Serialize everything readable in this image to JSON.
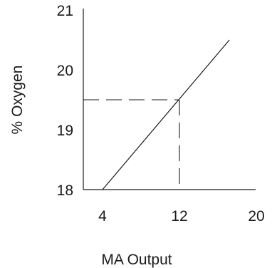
{
  "chart_data": {
    "type": "line",
    "xlabel": "MA Output",
    "ylabel": "% Oxygen",
    "x_ticks": [
      "4",
      "12",
      "20"
    ],
    "y_ticks": [
      "18",
      "19",
      "20",
      "21"
    ],
    "xlim": [
      4,
      20
    ],
    "ylim": [
      18,
      21
    ],
    "grid": false,
    "series": [
      {
        "x": [
          4,
          17.2
        ],
        "y": [
          18,
          20.5
        ]
      }
    ],
    "reference_point": {
      "x": 12,
      "y": 19.5
    },
    "colors": {
      "line": "#1a1a1a",
      "axis": "#1a1a1a",
      "reference": "#1a1a1a"
    }
  }
}
